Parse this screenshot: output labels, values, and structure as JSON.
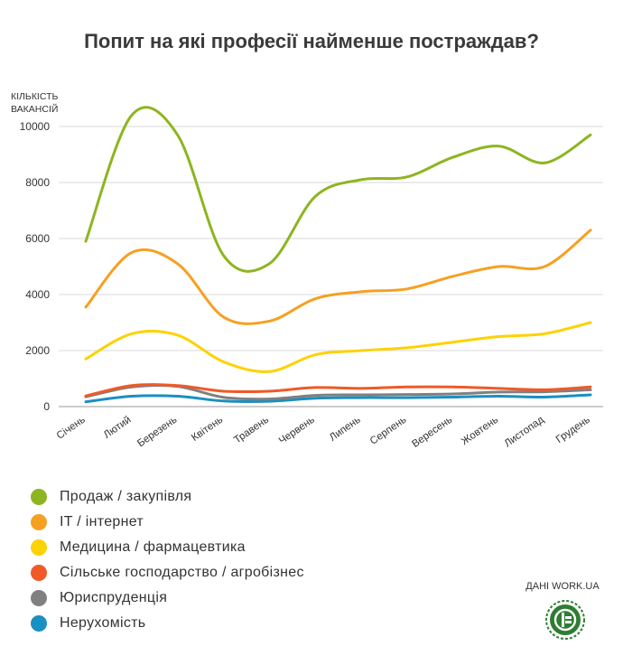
{
  "chart_data": {
    "type": "line",
    "title": "Попит на які професії найменше постраждав?",
    "ylabel": "КІЛЬКІСТЬ ВАКАНСІЙ",
    "xlabel": "",
    "categories": [
      "Січень",
      "Лютий",
      "Березень",
      "Квітень",
      "Травень",
      "Червень",
      "Липень",
      "Серпень",
      "Вересень",
      "Жовтень",
      "Листопад",
      "Грудень"
    ],
    "yticks": [
      0,
      2000,
      4000,
      6000,
      8000,
      10000
    ],
    "ylim": [
      0,
      10000
    ],
    "grid": true,
    "legend_position": "bottom-left",
    "series": [
      {
        "name": "Продаж / закупівля",
        "color": "#8db51f",
        "values": [
          5900,
          10400,
          9700,
          5400,
          5100,
          7500,
          8100,
          8200,
          8900,
          9300,
          8700,
          9700
        ]
      },
      {
        "name": "IT / інтернет",
        "color": "#f6a021",
        "values": [
          3550,
          5500,
          5100,
          3200,
          3050,
          3850,
          4100,
          4200,
          4650,
          5000,
          5000,
          6300
        ]
      },
      {
        "name": "Медицина / фармацевтика",
        "color": "#fdd204",
        "values": [
          1700,
          2600,
          2550,
          1600,
          1250,
          1850,
          2000,
          2100,
          2300,
          2500,
          2600,
          3000
        ]
      },
      {
        "name": "Сільське господарство / агробізнес",
        "color": "#ef5a28",
        "values": [
          380,
          750,
          750,
          550,
          550,
          680,
          650,
          700,
          700,
          650,
          600,
          700
        ]
      },
      {
        "name": "Юриспруденція",
        "color": "#808080",
        "values": [
          350,
          700,
          720,
          330,
          270,
          400,
          420,
          430,
          450,
          520,
          530,
          600
        ]
      },
      {
        "name": "Нерухомість",
        "color": "#1a8fc1",
        "values": [
          170,
          370,
          370,
          200,
          190,
          300,
          320,
          320,
          340,
          370,
          340,
          420
        ]
      }
    ]
  },
  "source": "ДАНІ WORK.UA",
  "logo_icon": "workua-logo-icon"
}
